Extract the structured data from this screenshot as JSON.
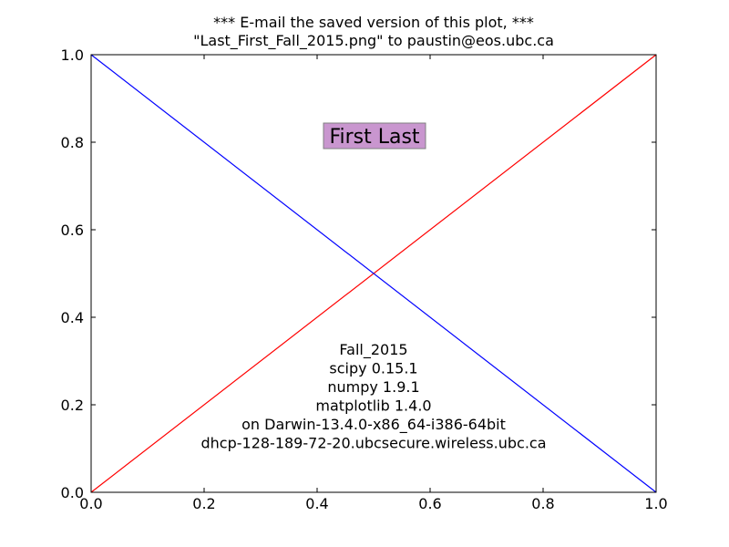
{
  "chart_data": {
    "type": "line",
    "title_lines": [
      "*** E-mail the saved version of this plot, ***",
      "\"Last_First_Fall_2015.png\" to paustin@eos.ubc.ca"
    ],
    "xlim": [
      0.0,
      1.0
    ],
    "ylim": [
      0.0,
      1.0
    ],
    "xticks": [
      "0.0",
      "0.2",
      "0.4",
      "0.6",
      "0.8",
      "1.0"
    ],
    "yticks": [
      "0.0",
      "0.2",
      "0.4",
      "0.6",
      "0.8",
      "1.0"
    ],
    "grid": false,
    "series": [
      {
        "color": "#ff0000",
        "x": [
          0.0,
          1.0
        ],
        "y": [
          0.0,
          1.0
        ]
      },
      {
        "color": "#0000ff",
        "x": [
          0.0,
          1.0
        ],
        "y": [
          1.0,
          0.0
        ]
      }
    ],
    "annotations": {
      "name_box": {
        "text": "First Last",
        "x": 0.5,
        "y": 0.8,
        "background": "#c996cf"
      },
      "info_lines": [
        "Fall_2015",
        "scipy 0.15.1",
        "numpy 1.9.1",
        "matplotlib 1.4.0",
        "on Darwin-13.4.0-x86_64-i386-64bit",
        "dhcp-128-189-72-20.ubcsecure.wireless.ubc.ca"
      ]
    }
  }
}
